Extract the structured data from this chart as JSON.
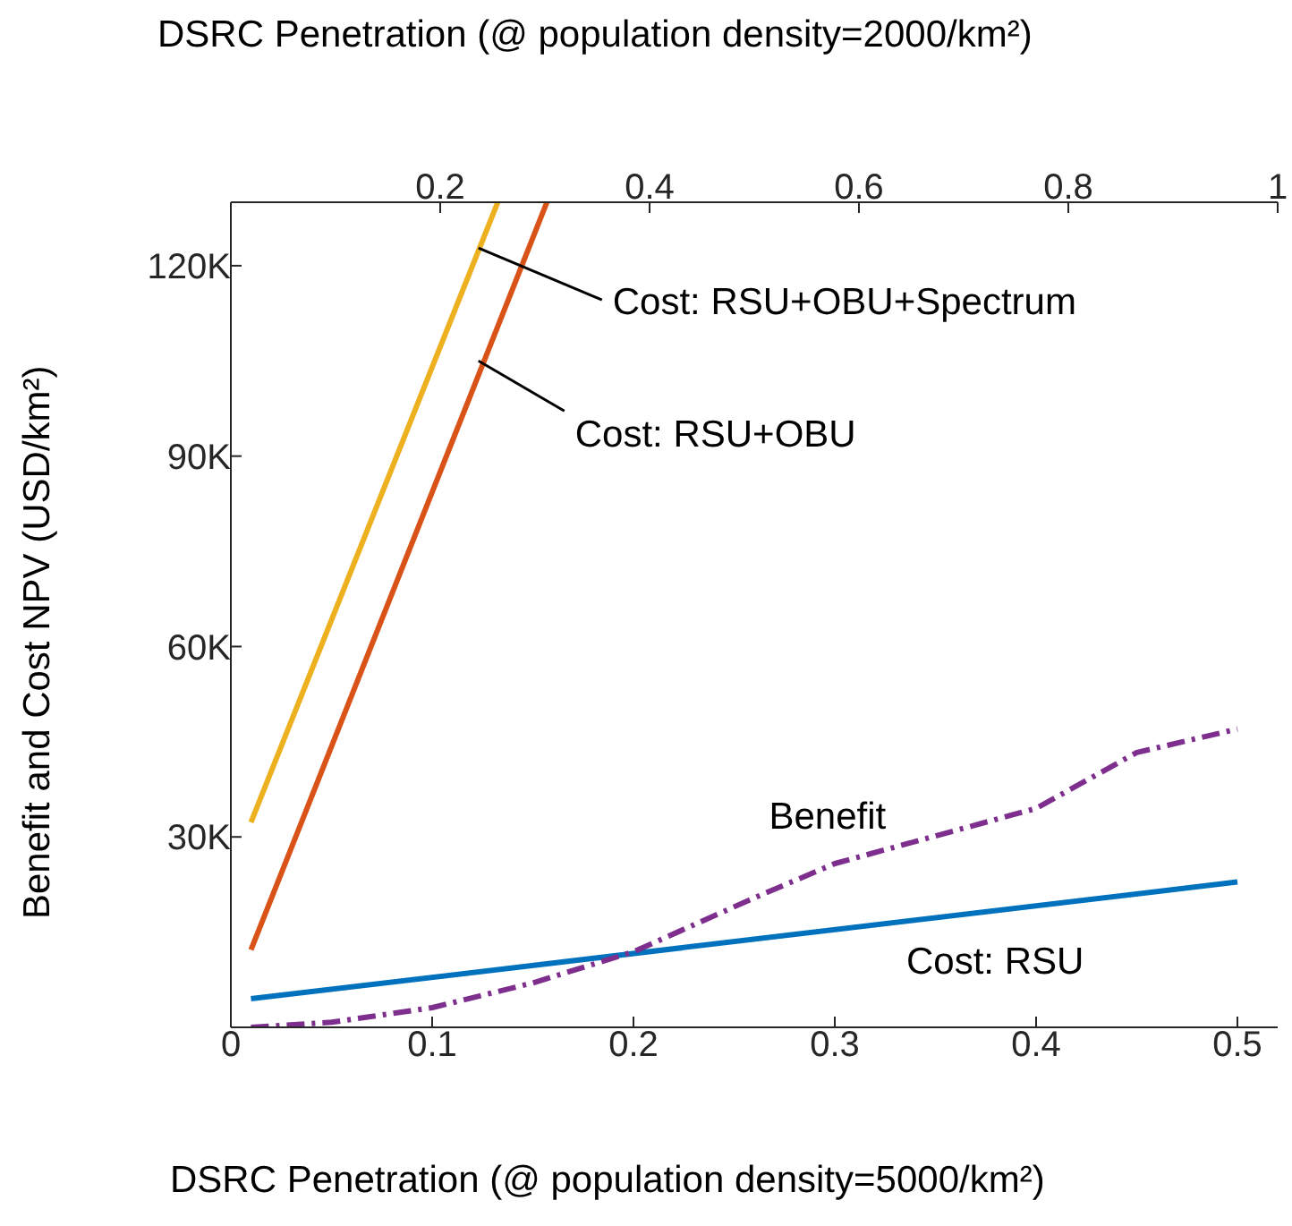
{
  "chart_data": {
    "type": "line",
    "x2label": "DSRC Penetration (@ population density=2000/km²)",
    "xlabel": "DSRC Penetration (@ population density=5000/km²)",
    "ylabel": "Benefit and Cost NPV (USD/km²)",
    "xlim": [
      0,
      0.52
    ],
    "xticks": [
      0,
      0.1,
      0.2,
      0.3,
      0.4,
      0.5
    ],
    "x2lim": [
      0,
      1
    ],
    "x2ticks": [
      0.2,
      0.4,
      0.6,
      0.8,
      1
    ],
    "ylim": [
      0,
      130000
    ],
    "yticks": [
      {
        "value": 30000,
        "label": "30K"
      },
      {
        "value": 60000,
        "label": "60K"
      },
      {
        "value": 90000,
        "label": "90K"
      },
      {
        "value": 120000,
        "label": "120K"
      }
    ],
    "series": [
      {
        "color": "#edb120",
        "line_style": "solid",
        "x": [
          0.01,
          0.1326
        ],
        "values": [
          32300,
          130000
        ]
      },
      {
        "color": "#d95319",
        "line_style": "solid",
        "x": [
          0.01,
          0.157
        ],
        "values": [
          12200,
          130000
        ]
      },
      {
        "color": "#0072bd",
        "line_style": "solid",
        "x": [
          0.01,
          0.5
        ],
        "values": [
          4500,
          22900
        ]
      },
      {
        "color": "#7e2f8e",
        "line_style": "dashed",
        "x": [
          0.01,
          0.05,
          0.1,
          0.15,
          0.2,
          0.26,
          0.3,
          0.4,
          0.45,
          0.5
        ],
        "values": [
          0,
          800,
          3100,
          7000,
          11900,
          20400,
          25800,
          34500,
          43300,
          47000
        ]
      }
    ],
    "annotations": [
      {
        "text": "Cost: RSU+OBU+Spectrum",
        "x": 0.123,
        "y": 122800
      },
      {
        "text": "Cost: RSU+OBU",
        "x": 0.123,
        "y": 105000
      },
      {
        "text": "Benefit",
        "x": 0.27,
        "y": 22000
      },
      {
        "text": "Cost: RSU",
        "x": 0.38,
        "y": 18400
      }
    ]
  }
}
